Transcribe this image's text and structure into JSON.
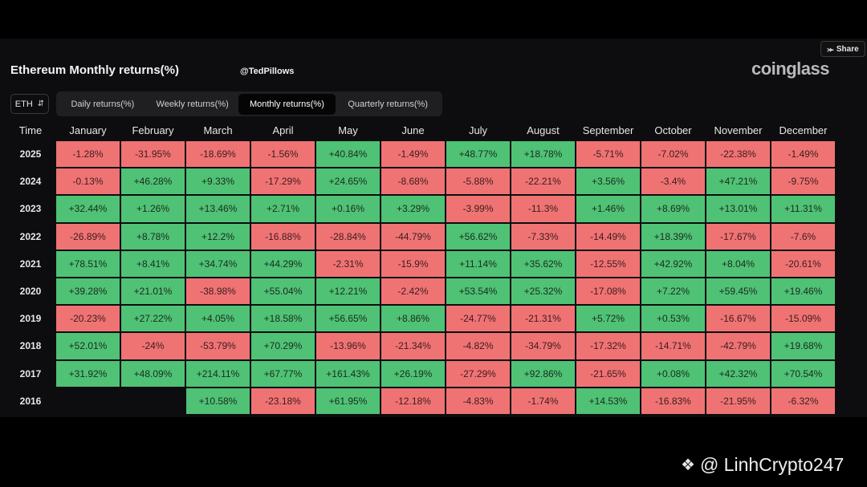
{
  "share": {
    "label": "Share",
    "icon": "share-icon"
  },
  "header": {
    "title": "Ethereum Monthly returns(%)",
    "handle": "@TedPillows",
    "logo": "coinglass"
  },
  "asset_selector": {
    "value": "ETH"
  },
  "tabs": [
    {
      "label": "Daily returns(%)",
      "active": false
    },
    {
      "label": "Weekly returns(%)",
      "active": false
    },
    {
      "label": "Monthly returns(%)",
      "active": true
    },
    {
      "label": "Quarterly returns(%)",
      "active": false
    }
  ],
  "table": {
    "time_header": "Time",
    "months": [
      "January",
      "February",
      "March",
      "April",
      "May",
      "June",
      "July",
      "August",
      "September",
      "October",
      "November",
      "December"
    ],
    "rows": [
      {
        "year": "2025",
        "values": [
          "-1.28%",
          "-31.95%",
          "-18.69%",
          "-1.56%",
          "+40.84%",
          "-1.49%",
          "+48.77%",
          "+18.78%",
          "-5.71%",
          "-7.02%",
          "-22.38%",
          "-1.49%"
        ]
      },
      {
        "year": "2024",
        "values": [
          "-0.13%",
          "+46.28%",
          "+9.33%",
          "-17.29%",
          "+24.65%",
          "-8.68%",
          "-5.88%",
          "-22.21%",
          "+3.56%",
          "-3.4%",
          "+47.21%",
          "-9.75%"
        ]
      },
      {
        "year": "2023",
        "values": [
          "+32.44%",
          "+1.26%",
          "+13.46%",
          "+2.71%",
          "+0.16%",
          "+3.29%",
          "-3.99%",
          "-11.3%",
          "+1.46%",
          "+8.69%",
          "+13.01%",
          "+11.31%"
        ]
      },
      {
        "year": "2022",
        "values": [
          "-26.89%",
          "+8.78%",
          "+12.2%",
          "-16.88%",
          "-28.84%",
          "-44.79%",
          "+56.62%",
          "-7.33%",
          "-14.49%",
          "+18.39%",
          "-17.67%",
          "-7.6%"
        ]
      },
      {
        "year": "2021",
        "values": [
          "+78.51%",
          "+8.41%",
          "+34.74%",
          "+44.29%",
          "-2.31%",
          "-15.9%",
          "+11.14%",
          "+35.62%",
          "-12.55%",
          "+42.92%",
          "+8.04%",
          "-20.61%"
        ]
      },
      {
        "year": "2020",
        "values": [
          "+39.28%",
          "+21.01%",
          "-38.98%",
          "+55.04%",
          "+12.21%",
          "-2.42%",
          "+53.54%",
          "+25.32%",
          "-17.08%",
          "+7.22%",
          "+59.45%",
          "+19.46%"
        ]
      },
      {
        "year": "2019",
        "values": [
          "-20.23%",
          "+27.22%",
          "+4.05%",
          "+18.58%",
          "+56.65%",
          "+8.86%",
          "-24.77%",
          "-21.31%",
          "+5.72%",
          "+0.53%",
          "-16.67%",
          "-15.09%"
        ]
      },
      {
        "year": "2018",
        "values": [
          "+52.01%",
          "-24%",
          "-53.79%",
          "+70.29%",
          "-13.96%",
          "-21.34%",
          "-4.82%",
          "-34.79%",
          "-17.32%",
          "-14.71%",
          "-42.79%",
          "+19.68%"
        ]
      },
      {
        "year": "2017",
        "values": [
          "+31.92%",
          "+48.09%",
          "+214.11%",
          "+67.77%",
          "+161.43%",
          "+26.19%",
          "-27.29%",
          "+92.86%",
          "-21.65%",
          "+0.08%",
          "+42.32%",
          "+70.54%"
        ]
      },
      {
        "year": "2016",
        "values": [
          "",
          "",
          "+10.58%",
          "-23.18%",
          "+61.95%",
          "-12.18%",
          "-4.83%",
          "-1.74%",
          "+14.53%",
          "-16.83%",
          "-21.95%",
          "-6.32%"
        ]
      }
    ]
  },
  "colors": {
    "positive": "#4fc275",
    "negative": "#f07374",
    "background": "#0d0d0f"
  },
  "watermark": {
    "text": "@ LinhCrypto247",
    "icon": "binance-diamond-icon"
  }
}
